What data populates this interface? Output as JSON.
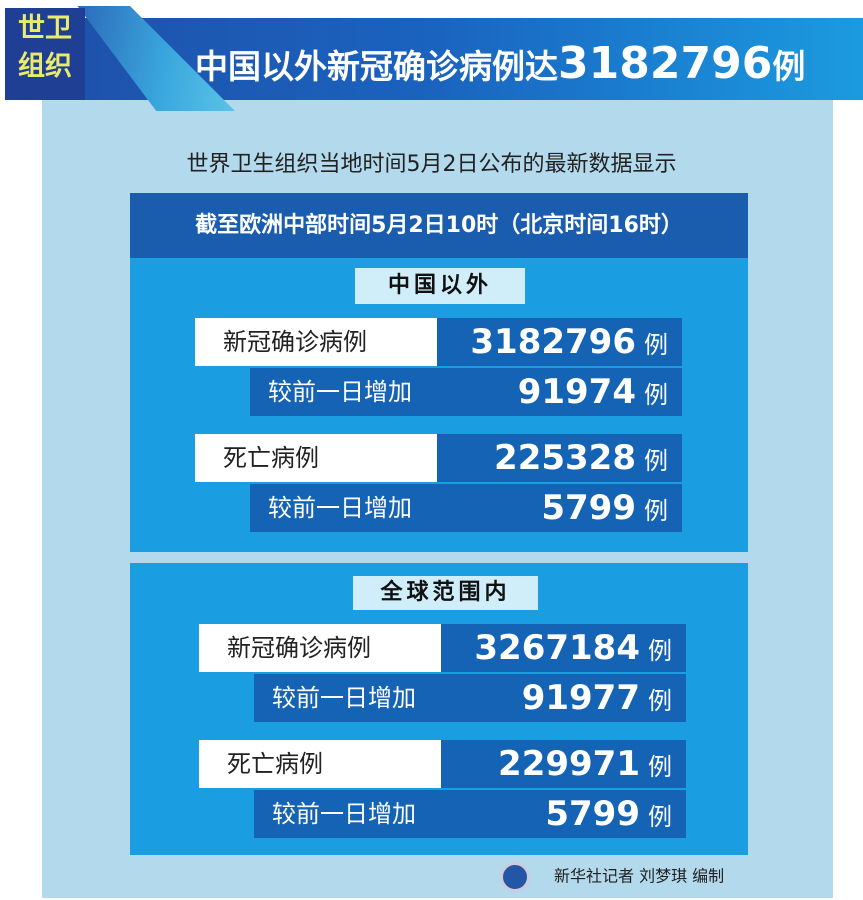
{
  "banner": {
    "tag_line1": "世卫",
    "tag_line2": "组织",
    "title_prefix": "中国以外新冠确诊病例达",
    "title_number": "3182796",
    "title_suffix": "例"
  },
  "subtitle": "世界卫生组织当地时间5月2日公布的最新数据显示",
  "date_bar": "截至欧洲中部时间5月2日10时（北京时间16时）",
  "sections": [
    {
      "label": "中国以外",
      "rows": [
        {
          "label": "新冠确诊病例",
          "value": "3182796",
          "unit": "例",
          "increase_label": "较前一日增加",
          "increase": "91974",
          "increase_unit": "例"
        },
        {
          "label": "死亡病例",
          "value": "225328",
          "unit": "例",
          "increase_label": "较前一日增加",
          "increase": "5799",
          "increase_unit": "例"
        }
      ]
    },
    {
      "label": "全球范围内",
      "rows": [
        {
          "label": "新冠确诊病例",
          "value": "3267184",
          "unit": "例",
          "increase_label": "较前一日增加",
          "increase": "91977",
          "increase_unit": "例"
        },
        {
          "label": "死亡病例",
          "value": "229971",
          "unit": "例",
          "increase_label": "较前一日增加",
          "increase": "5799",
          "increase_unit": "例"
        }
      ]
    }
  ],
  "credit": "新华社记者 刘梦琪 编制",
  "colors": {
    "banner": "#1a63bf",
    "section": "#1b9de2",
    "value_box": "#1463b5",
    "panel": "#b3d9ec",
    "tag_text": "#e8ec6a"
  }
}
